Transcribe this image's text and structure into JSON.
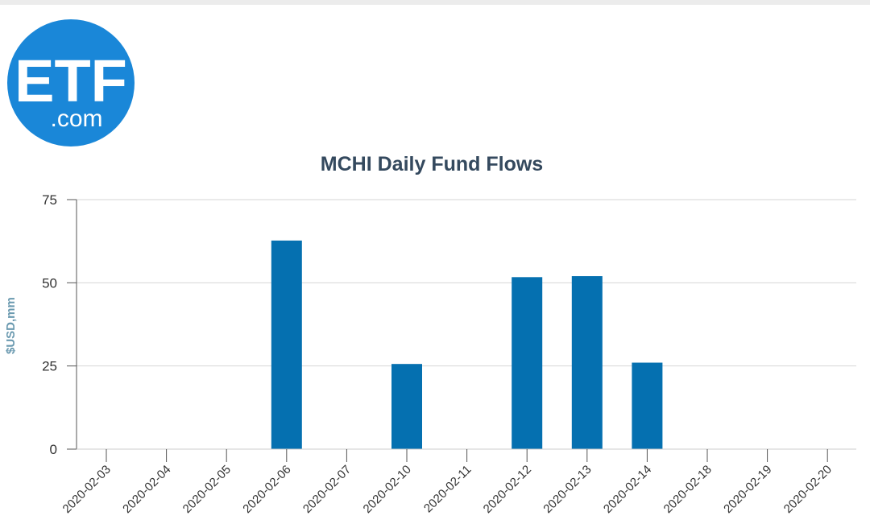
{
  "logo": {
    "main_text": "ETF",
    "sub_text": ".com",
    "color": "#1a87d8"
  },
  "chart_data": {
    "type": "bar",
    "title": "MCHI Daily Fund Flows",
    "xlabel": "",
    "ylabel": "$USD,mm",
    "ylim": [
      0,
      75
    ],
    "yticks": [
      0,
      25,
      50,
      75
    ],
    "grid": true,
    "bar_color": "#0570b0",
    "categories": [
      "2020-02-03",
      "2020-02-04",
      "2020-02-05",
      "2020-02-06",
      "2020-02-07",
      "2020-02-10",
      "2020-02-11",
      "2020-02-12",
      "2020-02-13",
      "2020-02-14",
      "2020-02-18",
      "2020-02-19",
      "2020-02-20"
    ],
    "values": [
      0,
      0,
      0,
      62.7,
      0,
      25.6,
      0,
      51.7,
      52.0,
      26.0,
      0,
      0,
      0
    ]
  }
}
